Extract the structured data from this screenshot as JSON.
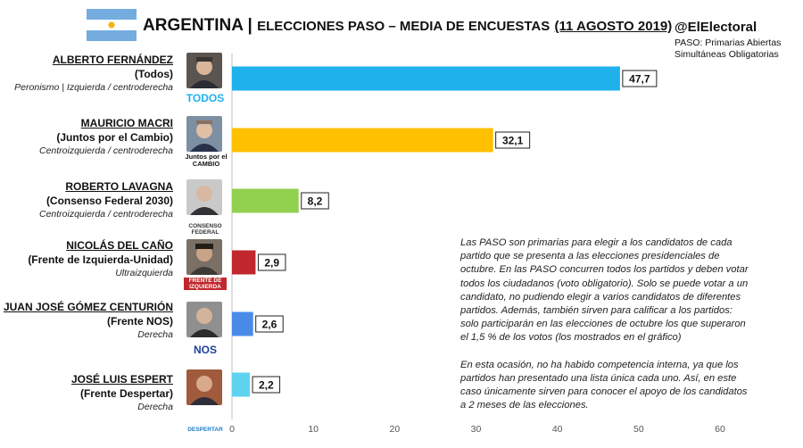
{
  "header": {
    "country": "ARGENTINA",
    "separator": "|",
    "subtitle": "ELECCIONES PASO – MEDIA DE ENCUESTAS",
    "date": "(11 AGOSTO 2019)",
    "handle": "@ElElectoral",
    "handle_note": "PASO: Primarias Abiertas Simultáneas Obligatorias"
  },
  "colors": {
    "flag_blue": "#74ACDF",
    "flag_sun": "#F6B40E"
  },
  "chart_data": {
    "type": "bar",
    "orientation": "horizontal",
    "title": "ARGENTINA | ELECCIONES PASO – MEDIA DE ENCUESTAS (11 AGOSTO 2019)",
    "xlim": [
      0,
      60
    ],
    "xticks": [
      0,
      10,
      20,
      30,
      40,
      50,
      60
    ],
    "xlabel": "",
    "ylabel": "",
    "grid": false,
    "categories": [
      "ALBERTO FERNÁNDEZ",
      "MAURICIO MACRI",
      "ROBERTO LAVAGNA",
      "NICOLÁS DEL CAÑO",
      "JUAN JOSÉ GÓMEZ CENTURIÓN",
      "JOSÉ LUIS ESPERT"
    ],
    "values": [
      47.7,
      32.1,
      8.2,
      2.9,
      2.6,
      2.2
    ],
    "value_labels": [
      "47,7",
      "32,1",
      "8,2",
      "2,9",
      "2,6",
      "2,2"
    ],
    "bar_colors": [
      "#1EB1EC",
      "#FFC000",
      "#92D050",
      "#C0282D",
      "#4A8BE8",
      "#5DD3F0"
    ]
  },
  "candidates": [
    {
      "name": "ALBERTO FERNÁNDEZ",
      "party": "(Todos)",
      "ideology": "Peronismo | Izquierda / centroderecha",
      "logo": "TODOS"
    },
    {
      "name": "MAURICIO MACRI",
      "party": "(Juntos por el Cambio)",
      "ideology": "Centroizquierda / centroderecha",
      "logo": "Juntos por el CAMBIO"
    },
    {
      "name": "ROBERTO LAVAGNA",
      "party": "(Consenso Federal 2030)",
      "ideology": "Centroizquierda / centroderecha",
      "logo": "CONSENSO FEDERAL"
    },
    {
      "name": "NICOLÁS DEL CAÑO",
      "party": "(Frente de Izquierda-Unidad)",
      "ideology": "Ultraizquierda",
      "logo": "FRENTE DE IZQUIERDA"
    },
    {
      "name": "JUAN JOSÉ GÓMEZ CENTURIÓN",
      "party": "(Frente NOS)",
      "ideology": "Derecha",
      "logo": "NOS"
    },
    {
      "name": "JOSÉ LUIS ESPERT",
      "party": "(Frente Despertar)",
      "ideology": "Derecha",
      "logo": "DESPERTAR"
    }
  ],
  "notes": [
    "Las PASO son primarias para elegir a los candidatos de cada partido que se presenta a las elecciones presidenciales de octubre. En las PASO concurren todos los partidos y deben votar todos los ciudadanos (voto obligatorio). Solo se puede votar a un candidato, no pudiendo elegir a varios candidatos de diferentes partidos. Además, también sirven para calificar a los partidos: solo participarán en las elecciones de octubre los que superaron el 1,5 % de los votos (los mostrados en el gráfico)",
    "En esta ocasión, no ha habido competencia interna, ya que los partidos han presentado una lista única cada uno. Así, en este caso únicamente sirven para conocer el apoyo de los candidatos a 2 meses de las elecciones."
  ]
}
